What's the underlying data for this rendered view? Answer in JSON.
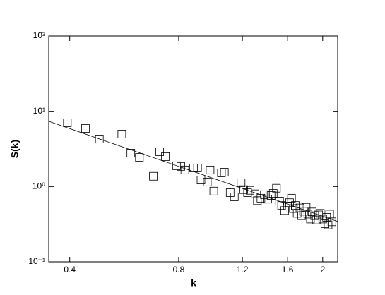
{
  "chart_data": {
    "type": "scatter",
    "x_label": "k",
    "y_label": "S(k)",
    "x_log": true,
    "y_log": true,
    "xlim": [
      0.35,
      2.2
    ],
    "ylim": [
      0.1,
      100
    ],
    "xticks": [
      0.4,
      0.8,
      1.2,
      1.6,
      2
    ],
    "yticks": [
      {
        "value": 0.1,
        "label": "10⁻¹"
      },
      {
        "value": 1,
        "label": "10⁰"
      },
      {
        "value": 10,
        "label": "10¹"
      },
      {
        "value": 100,
        "label": "10²"
      }
    ],
    "series": [
      {
        "color": "#000000",
        "marker": "square",
        "x": [
          0.394,
          0.442,
          0.483,
          0.557,
          0.59,
          0.623,
          0.681,
          0.709,
          0.735,
          0.789,
          0.811,
          0.832,
          0.879,
          0.902,
          0.922,
          0.96,
          0.977,
          1.0,
          1.05,
          1.07,
          1.11,
          1.14,
          1.19,
          1.21,
          1.24,
          1.26,
          1.3,
          1.32,
          1.35,
          1.38,
          1.41,
          1.44,
          1.46,
          1.49,
          1.52,
          1.54,
          1.57,
          1.6,
          1.62,
          1.64,
          1.66,
          1.68,
          1.7,
          1.73,
          1.75,
          1.77,
          1.8,
          1.82,
          1.85,
          1.87,
          1.9,
          1.92,
          1.95,
          1.97,
          2.0,
          2.03,
          2.05,
          2.07,
          2.09,
          2.12
        ],
        "values": [
          7.03,
          5.91,
          4.28,
          4.98,
          2.78,
          2.44,
          1.37,
          2.9,
          2.5,
          1.89,
          1.85,
          1.66,
          1.77,
          1.77,
          1.22,
          1.15,
          1.66,
          0.87,
          1.52,
          1.55,
          0.83,
          0.73,
          1.12,
          0.91,
          0.83,
          0.89,
          0.8,
          0.65,
          0.7,
          0.78,
          0.68,
          0.76,
          0.81,
          0.95,
          0.64,
          0.56,
          0.48,
          0.55,
          0.61,
          0.7,
          0.51,
          0.56,
          0.44,
          0.52,
          0.41,
          0.47,
          0.53,
          0.43,
          0.37,
          0.46,
          0.41,
          0.36,
          0.42,
          0.44,
          0.37,
          0.32,
          0.39,
          0.31,
          0.43,
          0.34
        ]
      },
      {
        "type": "line",
        "color": "#000000",
        "x": [
          0.35,
          2.2
        ],
        "values": [
          7.35,
          0.343
        ]
      }
    ]
  }
}
